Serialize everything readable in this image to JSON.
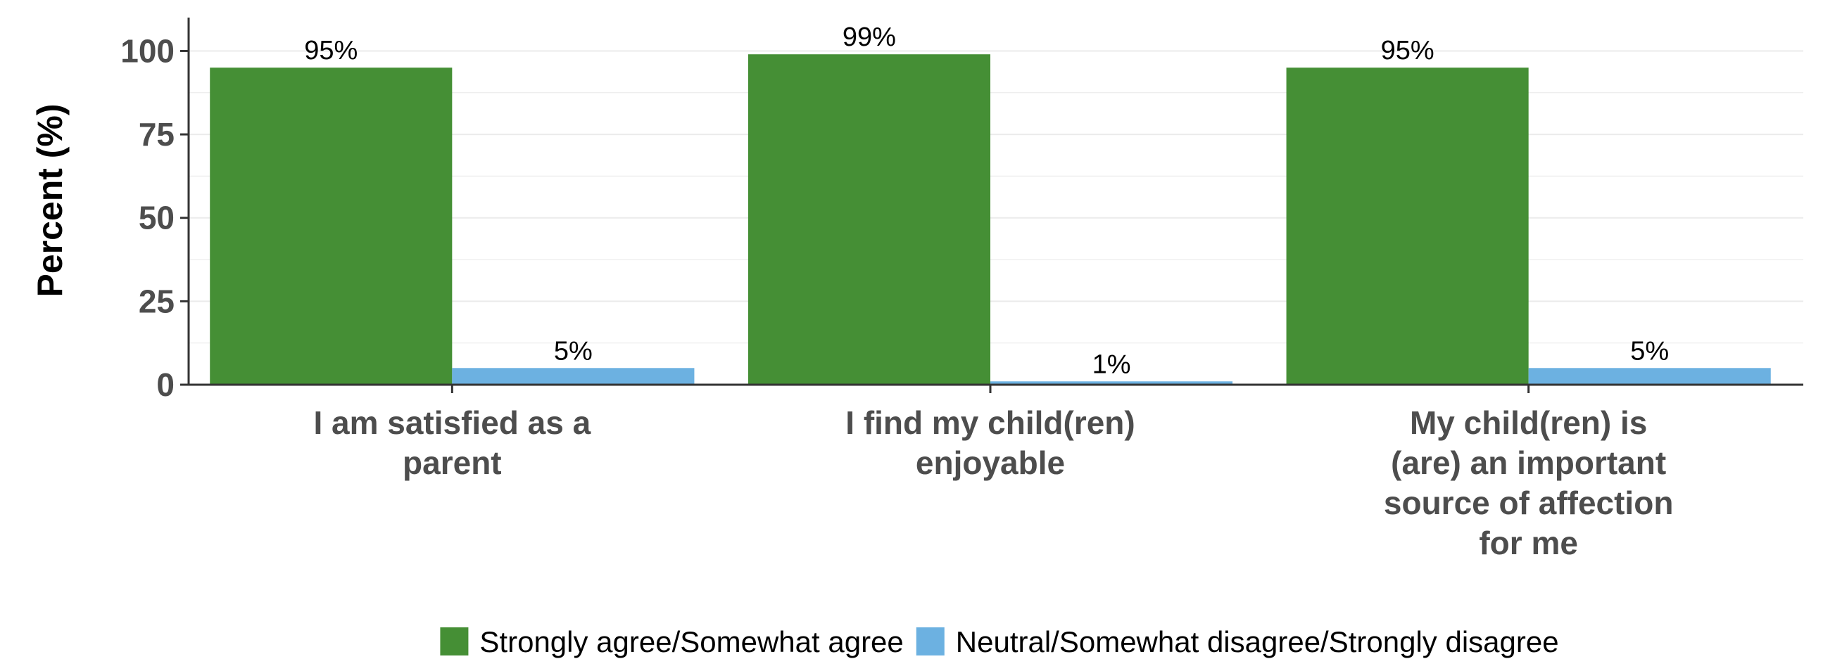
{
  "chart_data": {
    "type": "bar",
    "ylabel": "Percent (%)",
    "xlabel": "",
    "ylim": [
      0,
      110
    ],
    "yticks": [
      0,
      25,
      50,
      75,
      100
    ],
    "grid": true,
    "legend_position": "bottom",
    "categories": [
      [
        "I am satisfied as a",
        "parent"
      ],
      [
        "I find my child(ren)",
        "enjoyable"
      ],
      [
        "My child(ren) is",
        "(are) an important",
        "source of affection",
        "for me"
      ]
    ],
    "series": [
      {
        "name": "Strongly agree/Somewhat agree",
        "color": "#458f35",
        "values": [
          95,
          99,
          95
        ],
        "labels": [
          "95%",
          "99%",
          "95%"
        ]
      },
      {
        "name": "Neutral/Somewhat disagree/Strongly disagree",
        "color": "#6cb1e1",
        "values": [
          5,
          1,
          5
        ],
        "labels": [
          "5%",
          "1%",
          "5%"
        ]
      }
    ]
  }
}
